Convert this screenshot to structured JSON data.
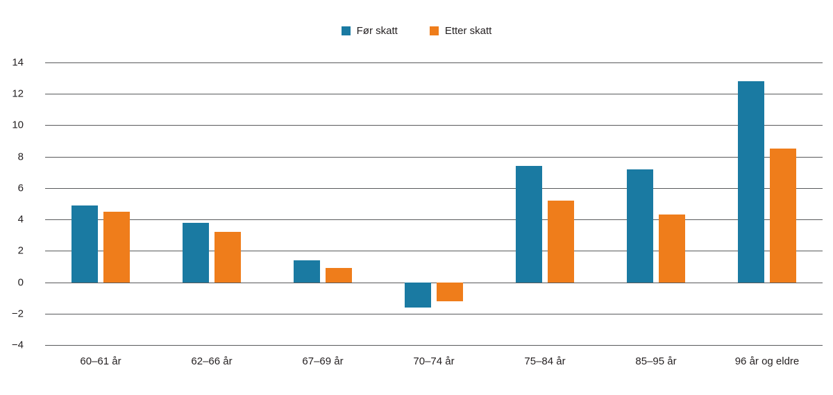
{
  "chart_data": {
    "type": "bar",
    "title": "",
    "xlabel": "",
    "ylabel": "",
    "categories": [
      "60–61 år",
      "62–66 år",
      "67–69 år",
      "70–74 år",
      "75–84 år",
      "85–95 år",
      "96 år og eldre"
    ],
    "series": [
      {
        "name": "Før skatt",
        "color": "#1a7aa2",
        "values": [
          4.9,
          3.8,
          1.4,
          -1.6,
          7.4,
          7.2,
          12.8
        ]
      },
      {
        "name": "Etter skatt",
        "color": "#ef7d1b",
        "values": [
          4.5,
          3.2,
          0.9,
          -1.2,
          5.2,
          4.3,
          8.5
        ]
      }
    ],
    "ylim": [
      -4,
      14
    ],
    "ytick_step": 2,
    "yticks": [
      "−4",
      "−2",
      "0",
      "2",
      "4",
      "6",
      "8",
      "10",
      "12",
      "14"
    ],
    "grid": true,
    "legend_position": "top-center",
    "gridline_color": "#58595b",
    "text_color": "#231f20",
    "background_color": "#ffffff"
  }
}
